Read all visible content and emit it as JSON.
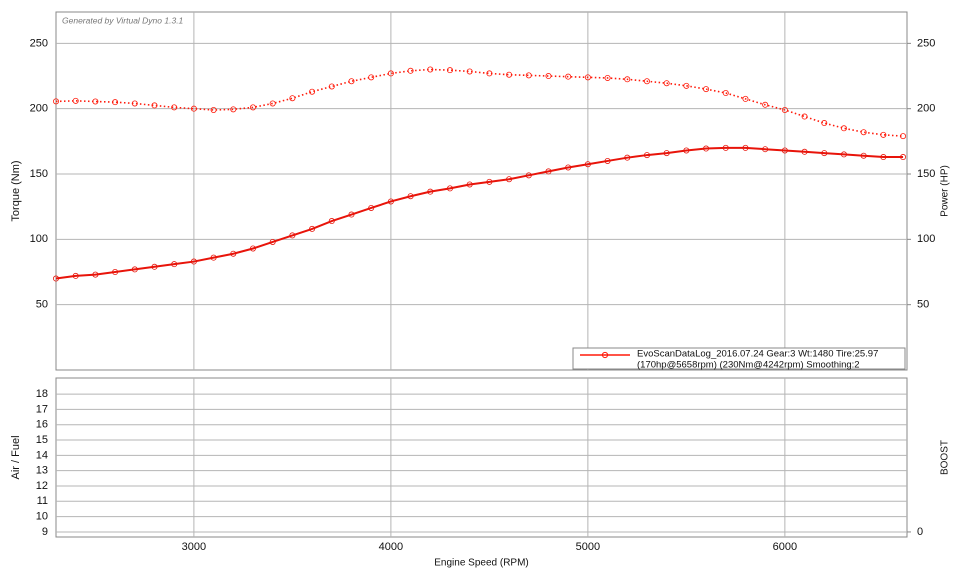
{
  "chart_data": [
    {
      "type": "line",
      "annotation": "Generated by Virtual Dyno 1.3.1",
      "ylabel": "Torque (Nm)",
      "y2label": "Power (HP)",
      "x": [
        2300,
        2400,
        2500,
        2600,
        2700,
        2800,
        2900,
        3000,
        3100,
        3200,
        3300,
        3400,
        3500,
        3600,
        3700,
        3800,
        3900,
        4000,
        4100,
        4200,
        4300,
        4400,
        4500,
        4600,
        4700,
        4800,
        4900,
        5000,
        5100,
        5200,
        5300,
        5400,
        5500,
        5600,
        5700,
        5800,
        5900,
        6000,
        6100,
        6200,
        6300,
        6400,
        6500,
        6600
      ],
      "xlim": [
        2300,
        6620
      ],
      "xticks": [
        3000,
        4000,
        5000,
        6000
      ],
      "ylim": [
        0,
        274
      ],
      "yticks": [
        50,
        100,
        150,
        200,
        250
      ],
      "y2lim": [
        0,
        274
      ],
      "y2ticks": [
        50,
        100,
        150,
        200,
        250
      ],
      "grid": true,
      "legend": [
        "EvoScanDataLog_2016.07.24 Gear:3 Wt:1480 Tire:25.97",
        "(170hp@5658rpm) (230Nm@4242rpm) Smoothing:2"
      ],
      "series": [
        {
          "style": "dotted",
          "color": "#ff1a0a",
          "values": [
            205.6,
            206,
            205.5,
            205,
            204,
            202.5,
            201,
            200,
            199,
            199.5,
            201,
            204,
            208,
            213,
            217,
            221,
            224,
            227,
            229,
            230,
            229.5,
            228.5,
            227,
            226,
            225.5,
            225,
            224.5,
            224,
            223.5,
            222.5,
            221,
            219.5,
            217.5,
            215,
            212,
            207.5,
            203,
            199,
            194,
            189,
            185,
            182,
            180,
            179
          ]
        },
        {
          "style": "solid",
          "color": "#e8140a",
          "axis": "y2",
          "values": [
            70,
            72,
            73,
            75,
            77,
            79,
            81,
            83,
            86,
            89,
            93,
            98,
            103,
            108,
            114,
            119,
            124,
            129,
            133,
            136.5,
            139,
            142,
            144,
            146,
            149,
            152,
            155,
            157.5,
            160,
            162.5,
            164.5,
            166,
            168,
            169.5,
            170,
            170,
            169,
            168,
            167,
            166,
            165,
            164,
            163,
            163
          ]
        }
      ]
    },
    {
      "type": "line",
      "ylabel": "Air / Fuel",
      "y2label": "BOOST",
      "xlabel": "Engine Speed (RPM)",
      "x": [],
      "xlim": [
        2300,
        6620
      ],
      "xticks": [
        3000,
        4000,
        5000,
        6000
      ],
      "ylim": [
        8.67,
        19.05
      ],
      "yticks": [
        9,
        10,
        11,
        12,
        13,
        14,
        15,
        16,
        17,
        18
      ],
      "y2lim": [
        -0.33,
        10.05
      ],
      "y2ticks": [
        0
      ],
      "grid": true,
      "series": []
    }
  ]
}
